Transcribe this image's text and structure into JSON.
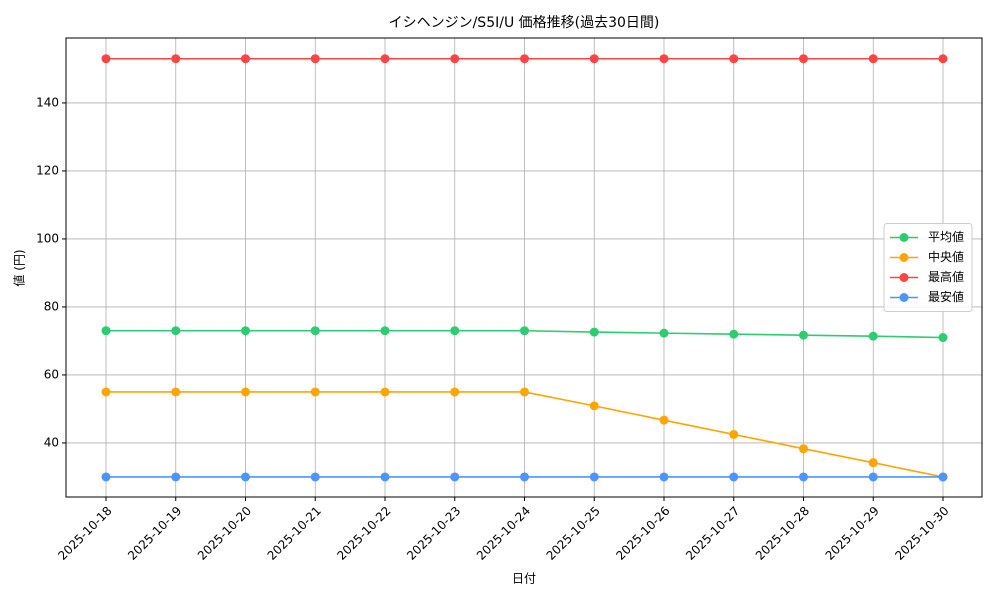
{
  "chart_data": {
    "type": "line",
    "title": "イシヘンジン/S5I/U 価格推移(過去30日間)",
    "x_label": "日付",
    "y_label": "値 (円)",
    "categories": [
      "2025-10-18",
      "2025-10-19",
      "2025-10-20",
      "2025-10-21",
      "2025-10-22",
      "2025-10-23",
      "2025-10-24",
      "2025-10-25",
      "2025-10-26",
      "2025-10-27",
      "2025-10-28",
      "2025-10-29",
      "2025-10-30"
    ],
    "series": [
      {
        "name": "平均値",
        "color": "#2ecc71",
        "values": [
          73,
          73,
          73,
          73,
          73,
          73,
          73,
          72.6,
          72.3,
          72,
          71.7,
          71.4,
          71
        ]
      },
      {
        "name": "中央値",
        "color": "#ffa500",
        "values": [
          55,
          55,
          55,
          55,
          55,
          55,
          55,
          50.9,
          46.7,
          42.5,
          38.3,
          34.2,
          30
        ]
      },
      {
        "name": "最高値",
        "color": "#ff4444",
        "values": [
          153,
          153,
          153,
          153,
          153,
          153,
          153,
          153,
          153,
          153,
          153,
          153,
          153
        ]
      },
      {
        "name": "最安値",
        "color": "#4d94ff",
        "values": [
          30,
          30,
          30,
          30,
          30,
          30,
          30,
          30,
          30,
          30,
          30,
          30,
          30
        ]
      }
    ],
    "ylim": [
      24.1,
      159.1
    ],
    "yticks": [
      40,
      60,
      80,
      100,
      120,
      140
    ],
    "grid": true,
    "legend": "center right"
  }
}
